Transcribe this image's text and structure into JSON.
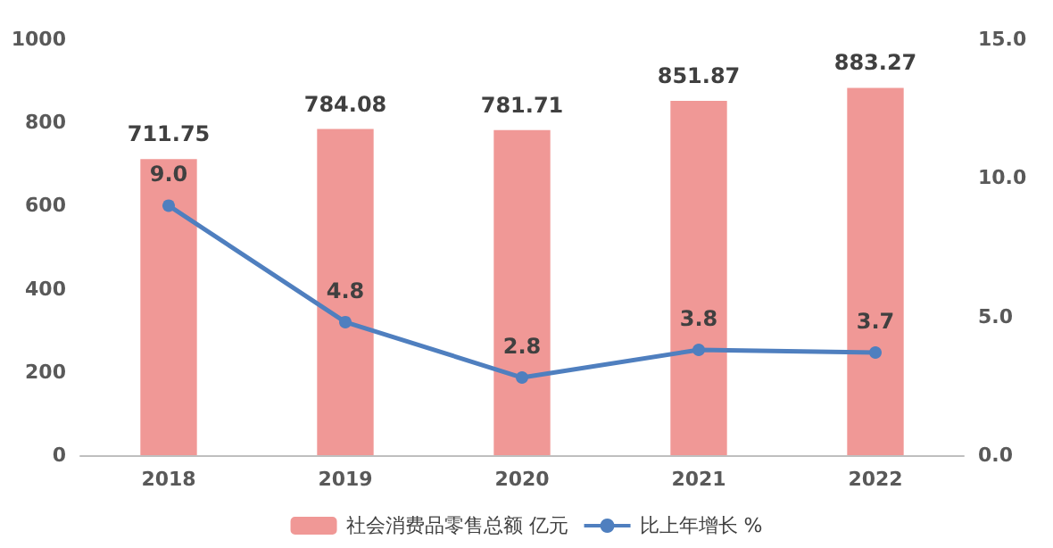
{
  "chart_data": {
    "type": "bar",
    "categories": [
      "2018",
      "2019",
      "2020",
      "2021",
      "2022"
    ],
    "series": [
      {
        "name": "社会消费品零售总额 亿元",
        "color": "#f09896",
        "values": [
          711.75,
          784.08,
          781.71,
          851.87,
          883.27
        ]
      },
      {
        "name": "比上年增长 %",
        "type": "line",
        "axis": "y2",
        "color": "#4f7fbf",
        "values": [
          9.0,
          4.8,
          2.8,
          3.8,
          3.7
        ],
        "value_labels": [
          "9.0",
          "4.8",
          "2.8",
          "3.8",
          "3.7"
        ]
      }
    ],
    "data_labels": true,
    "ylim": [
      0,
      1000
    ],
    "yticks": [
      0,
      200,
      400,
      600,
      800,
      1000
    ],
    "y2lim": [
      0,
      15
    ],
    "y2ticks": [
      {
        "value": 0,
        "label": "0.0"
      },
      {
        "value": 5,
        "label": "5.0"
      },
      {
        "value": 10,
        "label": "10.0"
      },
      {
        "value": 15,
        "label": "15.0"
      }
    ],
    "grid": false,
    "legend": "bottom",
    "marker": "circle",
    "line_style": "solid"
  }
}
